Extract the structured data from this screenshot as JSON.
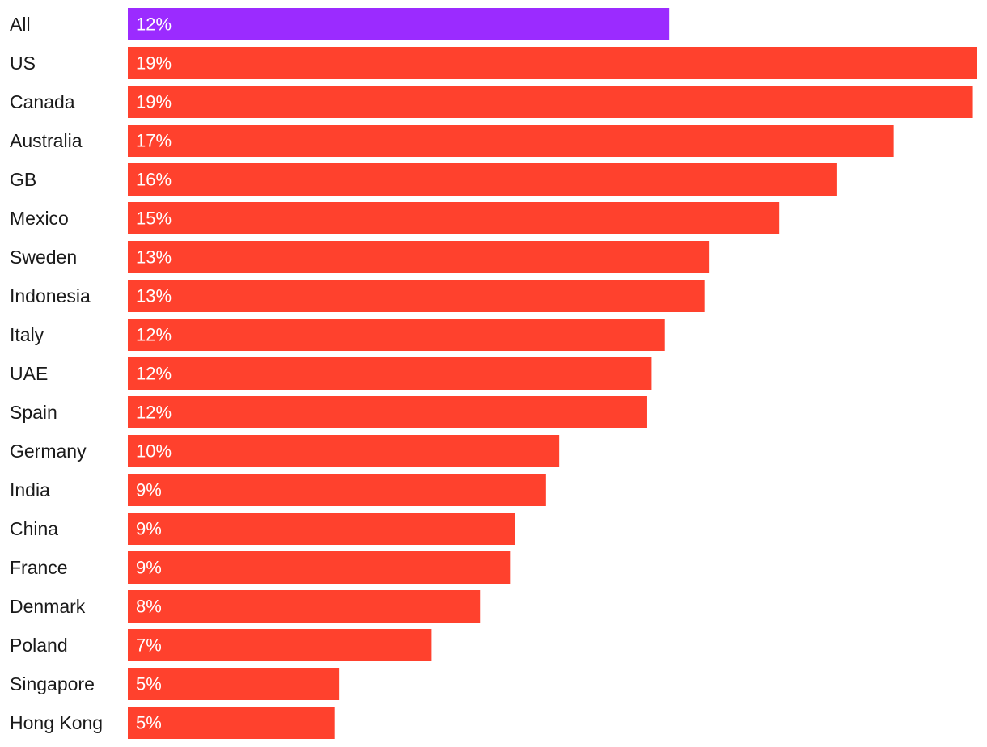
{
  "chart_data": {
    "type": "bar",
    "orientation": "horizontal",
    "categories": [
      "All",
      "US",
      "Canada",
      "Australia",
      "GB",
      "Mexico",
      "Sweden",
      "Indonesia",
      "Italy",
      "UAE",
      "Spain",
      "Germany",
      "India",
      "China",
      "France",
      "Denmark",
      "Poland",
      "Singapore",
      "Hong Kong"
    ],
    "values": [
      12.3,
      19.3,
      19.2,
      17.4,
      16.1,
      14.8,
      13.2,
      13.1,
      12.2,
      11.9,
      11.8,
      9.8,
      9.5,
      8.8,
      8.7,
      8.0,
      6.9,
      4.8,
      4.7
    ],
    "value_labels": [
      "12%",
      "19%",
      "19%",
      "17%",
      "16%",
      "15%",
      "13%",
      "13%",
      "12%",
      "12%",
      "12%",
      "10%",
      "9%",
      "9%",
      "9%",
      "8%",
      "7%",
      "5%",
      "5%"
    ],
    "highlight_category": "All",
    "colors": {
      "highlight": "#9b2bff",
      "bar": "#ff412d",
      "label_text": "#1a1a1a",
      "value_text": "#ffffff"
    },
    "xlim": [
      0,
      19.3
    ],
    "title": "",
    "xlabel": "",
    "ylabel": "",
    "grid": false,
    "legend": "none"
  }
}
